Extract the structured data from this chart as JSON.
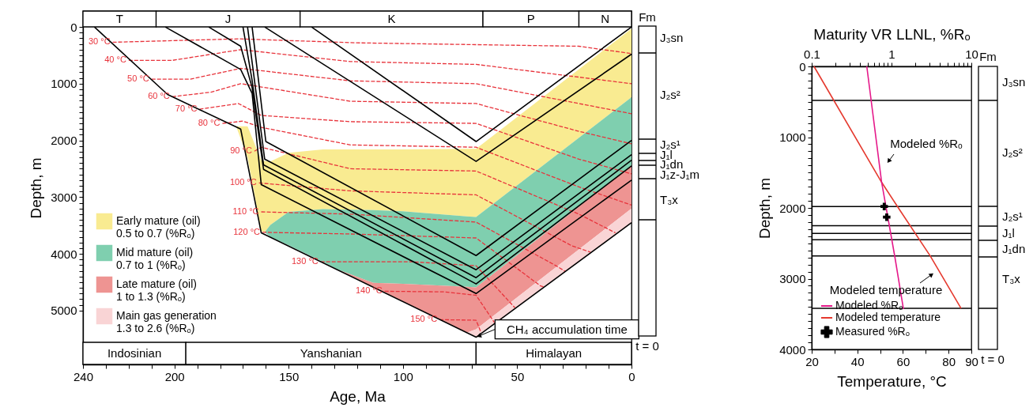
{
  "chart_data": [
    {
      "type": "line",
      "xlabel": "Age, Ma",
      "ylabel": "Depth, m",
      "xlim": [
        240,
        0
      ],
      "ylim": [
        5950,
        -280
      ],
      "xticks": [
        240,
        {
          "value": 230,
          "label": null
        },
        {
          "value": 220,
          "label": null
        },
        {
          "value": 210,
          "label": null
        },
        200,
        {
          "value": 190,
          "label": null
        },
        {
          "value": 180,
          "label": null
        },
        {
          "value": 170,
          "label": null
        },
        {
          "value": 160,
          "label": null
        },
        150,
        {
          "value": 140,
          "label": null
        },
        {
          "value": 130,
          "label": null
        },
        {
          "value": 120,
          "label": null
        },
        {
          "value": 110,
          "label": null
        },
        100,
        {
          "value": 90,
          "label": null
        },
        {
          "value": 80,
          "label": null
        },
        {
          "value": 70,
          "label": null
        },
        {
          "value": 60,
          "label": null
        },
        50,
        {
          "value": 40,
          "label": null
        },
        {
          "value": 30,
          "label": null
        },
        {
          "value": 20,
          "label": null
        },
        {
          "value": 10,
          "label": null
        },
        0
      ],
      "yticks": [
        0,
        {
          "value": 100,
          "label": null
        },
        {
          "value": 200,
          "label": null
        },
        {
          "value": 300,
          "label": null
        },
        {
          "value": 400,
          "label": null
        },
        {
          "value": 500,
          "label": null
        },
        {
          "value": 600,
          "label": null
        },
        {
          "value": 700,
          "label": null
        },
        {
          "value": 800,
          "label": null
        },
        {
          "value": 900,
          "label": null
        },
        1000,
        {
          "value": 1100,
          "label": null
        },
        {
          "value": 1200,
          "label": null
        },
        {
          "value": 1300,
          "label": null
        },
        {
          "value": 1400,
          "label": null
        },
        {
          "value": 1500,
          "label": null
        },
        {
          "value": 1600,
          "label": null
        },
        {
          "value": 1700,
          "label": null
        },
        {
          "value": 1800,
          "label": null
        },
        {
          "value": 1900,
          "label": null
        },
        2000,
        {
          "value": 2100,
          "label": null
        },
        {
          "value": 2200,
          "label": null
        },
        {
          "value": 2300,
          "label": null
        },
        {
          "value": 2400,
          "label": null
        },
        {
          "value": 2500,
          "label": null
        },
        {
          "value": 2600,
          "label": null
        },
        {
          "value": 2700,
          "label": null
        },
        {
          "value": 2800,
          "label": null
        },
        {
          "value": 2900,
          "label": null
        },
        3000,
        {
          "value": 3100,
          "label": null
        },
        {
          "value": 3200,
          "label": null
        },
        {
          "value": 3300,
          "label": null
        },
        {
          "value": 3400,
          "label": null
        },
        {
          "value": 3500,
          "label": null
        },
        {
          "value": 3600,
          "label": null
        },
        {
          "value": 3700,
          "label": null
        },
        {
          "value": 3800,
          "label": null
        },
        {
          "value": 3900,
          "label": null
        },
        4000,
        {
          "value": 4100,
          "label": null
        },
        {
          "value": 4200,
          "label": null
        },
        {
          "value": 4300,
          "label": null
        },
        {
          "value": 4400,
          "label": null
        },
        {
          "value": 4500,
          "label": null
        },
        {
          "value": 4600,
          "label": null
        },
        {
          "value": 4700,
          "label": null
        },
        {
          "value": 4800,
          "label": null
        },
        {
          "value": 4900,
          "label": null
        },
        5000
      ],
      "legend": "bottom left",
      "stacked": true,
      "series": [
        {
          "type": "area",
          "color": "#ffffff",
          "x": [
            173,
            168,
            162,
            160.5,
            158,
            150,
            135,
            129,
            113,
            100,
            72,
            68,
            0
          ],
          "values": [
            1750,
            1750,
            2350,
            2360,
            2370,
            2220,
            2160,
            2160,
            2160,
            2160,
            2150,
            2150,
            30
          ]
        },
        {
          "type": "area",
          "name": "Early mature (oil) 0.5 to 0.7 (%Rₒ)",
          "color": "#f9eb91",
          "x": [
            173,
            168,
            162,
            160.5,
            158,
            150,
            135,
            129,
            113,
            100,
            72,
            68,
            0
          ],
          "values": [
            0,
            550,
            1250,
            1260,
            1120,
            1040,
            1050,
            1060,
            1070,
            1090,
            1190,
            1200,
            1210
          ]
        },
        {
          "type": "area",
          "name": "Mid mature (oil) 0.7 to 1 (%Rₒ)",
          "color": "#7fcfaf",
          "x": [
            173,
            168,
            162,
            160.5,
            158,
            150,
            135,
            129,
            113,
            100,
            72,
            68,
            0
          ],
          "values": [
            0,
            0,
            0,
            0,
            210,
            590,
            930,
            1050,
            1280,
            1280,
            1240,
            1240,
            1200
          ]
        },
        {
          "type": "area",
          "name": "Late mature (oil) 1 to 1.3 (%Rₒ)",
          "color": "#ee9492",
          "x": [
            173,
            168,
            162,
            160.5,
            158,
            150,
            135,
            129,
            113,
            100,
            72,
            68,
            0
          ],
          "values": [
            0,
            0,
            0,
            0,
            0,
            0,
            0,
            0,
            70,
            310,
            810,
            740,
            760
          ]
        },
        {
          "type": "area",
          "name": "Main gas generation 1.3 to 2.6 (%Rₒ)",
          "color": "#f9d4d5",
          "x": [
            173,
            168,
            162,
            160.5,
            158,
            150,
            135,
            129,
            113,
            100,
            72,
            68,
            0
          ],
          "values": [
            0,
            0,
            0,
            0,
            0,
            0,
            0,
            0,
            0,
            0,
            0,
            140,
            250
          ]
        },
        {
          "color": "#e8333b",
          "line_style": "dashed",
          "x": [
            227,
            172,
            120,
            23,
            0
          ],
          "values": [
            270,
            210,
            280,
            340,
            470
          ]
        },
        {
          "color": "#e8333b",
          "line_style": "dashed",
          "x": [
            220,
            201,
            171,
            123,
            68,
            26,
            0
          ],
          "values": [
            590,
            590,
            400,
            610,
            660,
            870,
            1000
          ]
        },
        {
          "color": "#e8333b",
          "line_style": "dashed",
          "x": [
            210,
            193,
            171,
            123,
            68,
            23,
            0
          ],
          "values": [
            920,
            920,
            730,
            950,
            1000,
            1350,
            1530
          ]
        },
        {
          "color": "#e8333b",
          "line_style": "dashed",
          "x": [
            201,
            184,
            171,
            123,
            68,
            23,
            0
          ],
          "values": [
            1230,
            1150,
            1000,
            1310,
            1350,
            1840,
            2060
          ]
        },
        {
          "color": "#e8333b",
          "line_style": "dashed",
          "x": [
            189,
            172,
            162,
            123,
            68,
            23,
            0
          ],
          "values": [
            1450,
            1350,
            1560,
            1670,
            1700,
            2330,
            2590
          ]
        },
        {
          "color": "#e8333b",
          "line_style": "dashed",
          "x": [
            179,
            170,
            162,
            123,
            68,
            23,
            0
          ],
          "values": [
            1700,
            1660,
            1770,
            2080,
            2120,
            2820,
            3140
          ]
        },
        {
          "color": "#e8333b",
          "line_style": "dashed",
          "x": [
            165,
            162,
            123,
            68,
            23,
            7
          ],
          "values": [
            2190,
            2120,
            2500,
            2540,
            3300,
            3630
          ]
        },
        {
          "color": "#e8333b",
          "line_style": "dashed",
          "x": [
            163,
            123,
            68,
            26,
            18
          ],
          "values": [
            2750,
            2890,
            2960,
            3860,
            3970
          ]
        },
        {
          "color": "#e8333b",
          "line_style": "dashed",
          "x": [
            162,
            123,
            68,
            33,
            29
          ],
          "values": [
            3260,
            3300,
            3440,
            4210,
            4310
          ]
        },
        {
          "color": "#e8333b",
          "line_style": "dashed",
          "x": [
            161.5,
            123,
            68,
            40,
            38
          ],
          "values": [
            3620,
            3650,
            3720,
            4560,
            4590
          ]
        },
        {
          "color": "#e8333b",
          "line_style": "dashed",
          "x": [
            136,
            96,
            68,
            51
          ],
          "values": [
            4140,
            4140,
            4210,
            4950
          ]
        },
        {
          "color": "#e8333b",
          "line_style": "dashed",
          "x": [
            108,
            82,
            68,
            60
          ],
          "values": [
            4660,
            4670,
            4730,
            5210
          ]
        },
        {
          "color": "#e8333b",
          "line_style": "dashed",
          "x": [
            84,
            68,
            66
          ],
          "values": [
            5160,
            5170,
            5370
          ]
        },
        {
          "color": "#000000",
          "x": [
            235,
            203,
            171,
            162,
            68,
            0
          ],
          "values": [
            0,
            1190,
            1800,
            3630,
            5470,
            3450
          ]
        },
        {
          "color": "#000000",
          "x": [
            204,
            171,
            166,
            162,
            68,
            0
          ],
          "values": [
            0,
            750,
            1170,
            2780,
            4700,
            2700
          ]
        },
        {
          "color": "#000000",
          "x": [
            185,
            171,
            166,
            161,
            68,
            0
          ],
          "values": [
            0,
            340,
            1070,
            2510,
            4530,
            2450
          ]
        },
        {
          "color": "#000000",
          "x": [
            170,
            166,
            161,
            68,
            0
          ],
          "values": [
            0,
            940,
            2430,
            4420,
            2350
          ]
        },
        {
          "color": "#000000",
          "x": [
            168,
            160.5,
            68,
            0
          ],
          "values": [
            0,
            2330,
            4280,
            2250
          ]
        },
        {
          "color": "#000000",
          "x": [
            166,
            160,
            68,
            0
          ],
          "values": [
            0,
            2020,
            4030,
            2000
          ]
        },
        {
          "color": "#000000",
          "x": [
            160.5,
            68,
            0
          ],
          "values": [
            0,
            2370,
            480
          ]
        },
        {
          "color": "#000000",
          "x": [
            140,
            68,
            0
          ],
          "values": [
            0,
            2020,
            0
          ]
        }
      ],
      "bands": [
        {
          "axis": "x",
          "from": 240,
          "to": 208,
          "label": "T"
        },
        {
          "axis": "x",
          "from": 208,
          "to": 145,
          "label": "J"
        },
        {
          "axis": "x",
          "from": 145,
          "to": 65,
          "label": "K"
        },
        {
          "axis": "x",
          "from": 65,
          "to": 23,
          "label": "P"
        },
        {
          "axis": "x",
          "from": 23,
          "to": 0,
          "label": "N"
        },
        {
          "axis": "x",
          "from": 240,
          "to": 195,
          "label": "Indosinian"
        },
        {
          "axis": "x",
          "from": 195,
          "to": 68,
          "label": "Yanshanian"
        },
        {
          "axis": "x",
          "from": 68,
          "to": 0,
          "label": "Himalayan"
        }
      ],
      "annotations": [
        {
          "text": "30 °C",
          "x": 227,
          "y": 270
        },
        {
          "text": "40 °C",
          "x": 220,
          "y": 590
        },
        {
          "text": "50 °C",
          "x": 210,
          "y": 920
        },
        {
          "text": "60 °C",
          "x": 201,
          "y": 1230
        },
        {
          "text": "70 °C",
          "x": 189,
          "y": 1450
        },
        {
          "text": "80 °C",
          "x": 179,
          "y": 1700
        },
        {
          "text": "90 °C",
          "x": 165,
          "y": 2190
        },
        {
          "text": "100 °C",
          "x": 163,
          "y": 2750
        },
        {
          "text": "110 °C",
          "x": 162,
          "y": 3260
        },
        {
          "text": "120 °C",
          "x": 161.5,
          "y": 3620
        },
        {
          "text": "130 °C",
          "x": 136,
          "y": 4140
        },
        {
          "text": "140 °C",
          "x": 108,
          "y": 4660
        },
        {
          "text": "150 °C",
          "x": 84,
          "y": 5160
        },
        {
          "text": "CH₄ accumulation time",
          "x": 68,
          "y": 5470
        }
      ]
    },
    {
      "type": "other",
      "annotations": [
        "Fm",
        "J₃sn",
        "J₂s²",
        "J₂s¹",
        "J₁l",
        "J₁dn",
        "J₁z-J₁m",
        "T₃x",
        "t = 0"
      ]
    },
    {
      "type": "line",
      "xlabel": "Temperature, °C",
      "x2label": "Maturity VR LLNL, %Rₒ",
      "ylabel": "Depth, m",
      "log": "x2",
      "xlim": [
        20,
        90
      ],
      "xticks": [
        20,
        {
          "value": 30,
          "label": null
        },
        40,
        {
          "value": 50,
          "label": null
        },
        60,
        {
          "value": 70,
          "label": null
        },
        80,
        90
      ],
      "x2lim": [
        0.1,
        10
      ],
      "x2ticks": [
        0.1,
        {
          "value": 0.2,
          "label": null
        },
        {
          "value": 0.3,
          "label": null
        },
        {
          "value": 0.4,
          "label": null
        },
        {
          "value": 0.5,
          "label": null
        },
        {
          "value": 0.6,
          "label": null
        },
        {
          "value": 0.7,
          "label": null
        },
        {
          "value": 0.8,
          "label": null
        },
        {
          "value": 0.9,
          "label": null
        },
        1,
        {
          "value": 2,
          "label": null
        },
        {
          "value": 3,
          "label": null
        },
        {
          "value": 4,
          "label": null
        },
        {
          "value": 5,
          "label": null
        },
        {
          "value": 6,
          "label": null
        },
        {
          "value": 7,
          "label": null
        },
        {
          "value": 8,
          "label": null
        },
        {
          "value": 9,
          "label": null
        },
        10
      ],
      "ylim": [
        4000,
        0
      ],
      "yticks": [
        0,
        {
          "value": 100,
          "label": null
        },
        {
          "value": 200,
          "label": null
        },
        {
          "value": 300,
          "label": null
        },
        {
          "value": 400,
          "label": null
        },
        {
          "value": 500,
          "label": null
        },
        {
          "value": 600,
          "label": null
        },
        {
          "value": 700,
          "label": null
        },
        {
          "value": 800,
          "label": null
        },
        {
          "value": 900,
          "label": null
        },
        1000,
        {
          "value": 1100,
          "label": null
        },
        {
          "value": 1200,
          "label": null
        },
        {
          "value": 1300,
          "label": null
        },
        {
          "value": 1400,
          "label": null
        },
        {
          "value": 1500,
          "label": null
        },
        {
          "value": 1600,
          "label": null
        },
        {
          "value": 1700,
          "label": null
        },
        {
          "value": 1800,
          "label": null
        },
        {
          "value": 1900,
          "label": null
        },
        2000,
        {
          "value": 2100,
          "label": null
        },
        {
          "value": 2200,
          "label": null
        },
        {
          "value": 2300,
          "label": null
        },
        {
          "value": 2400,
          "label": null
        },
        {
          "value": 2500,
          "label": null
        },
        {
          "value": 2600,
          "label": null
        },
        {
          "value": 2700,
          "label": null
        },
        {
          "value": 2800,
          "label": null
        },
        {
          "value": 2900,
          "label": null
        },
        3000,
        {
          "value": 3100,
          "label": null
        },
        {
          "value": 3200,
          "label": null
        },
        {
          "value": 3300,
          "label": null
        },
        {
          "value": 3400,
          "label": null
        },
        {
          "value": 3500,
          "label": null
        },
        {
          "value": 3600,
          "label": null
        },
        {
          "value": 3700,
          "label": null
        },
        {
          "value": 3800,
          "label": null
        },
        {
          "value": 3900,
          "label": null
        },
        4000
      ],
      "legend": "bottom left",
      "series": [
        {
          "name": "Modeled %Rₒ",
          "color": "#e5198a",
          "axis": "x2",
          "x": [
            0.49,
            0.75,
            1.1,
            1.41
          ],
          "values": [
            0,
            1630,
            2690,
            3430
          ]
        },
        {
          "name": "Modeled temperature",
          "color": "#e5392e",
          "x": [
            21,
            50.7,
            57.6,
            72,
            85.5
          ],
          "values": [
            0,
            1640,
            1980,
            2680,
            3420
          ]
        },
        {
          "type": "scatter",
          "name": "Measured %Rₒ",
          "color": "#000000",
          "axis": "x2",
          "marker": "cross",
          "x": [
            0.81,
            0.87
          ],
          "values": [
            1980,
            2130
          ]
        }
      ],
      "ref_lines": [
        {
          "axis": "y",
          "value": 480
        },
        {
          "axis": "y",
          "value": 1980
        },
        {
          "axis": "y",
          "value": 2250
        },
        {
          "axis": "y",
          "value": 2360
        },
        {
          "axis": "y",
          "value": 2450
        },
        {
          "axis": "y",
          "value": 2680
        },
        {
          "axis": "y",
          "value": 3420
        }
      ],
      "annotations": [
        "Modeled %Rₒ",
        "Modeled temperature"
      ]
    },
    {
      "type": "other",
      "annotations": [
        "Fm",
        "J₃sn",
        "J₂s²",
        "J₂s¹",
        "J₁l",
        "J₁dn",
        "T₃x",
        "t = 0"
      ]
    }
  ]
}
